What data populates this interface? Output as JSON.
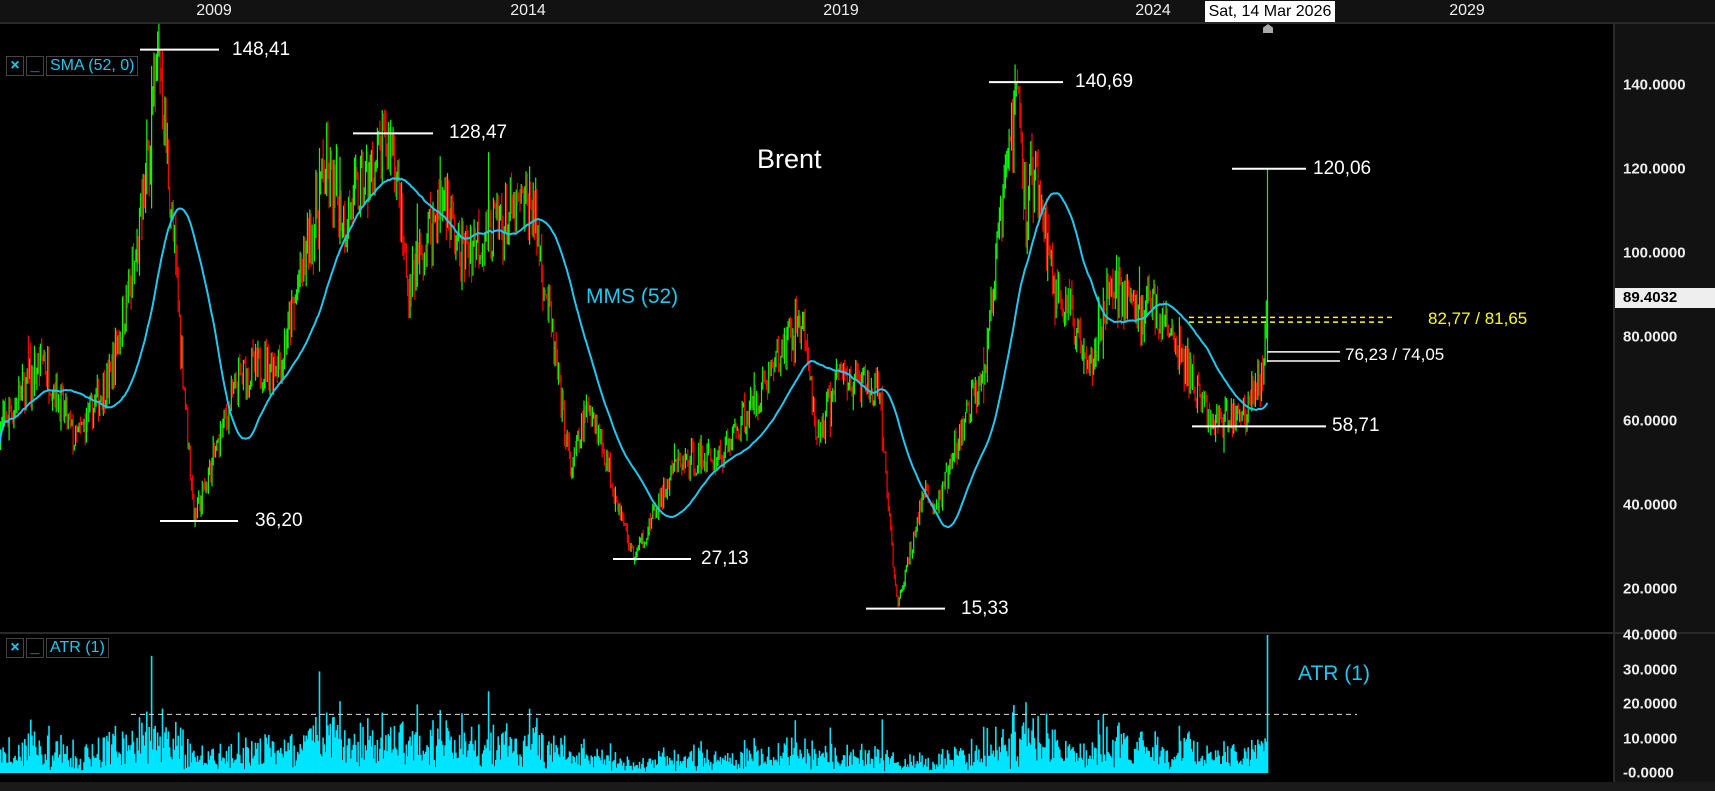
{
  "chart_data": {
    "type": "candlestick",
    "title": "Brent",
    "timeframe": "weekly",
    "x_ticks": [
      "2009",
      "2014",
      "2019",
      "2024",
      "2029"
    ],
    "cursor_date": "Sat, 14 Mar 2026",
    "price_axis": {
      "ticks": [
        "140.0000",
        "120.0000",
        "100.0000",
        "80.0000",
        "60.0000",
        "40.0000",
        "20.0000"
      ],
      "range": [
        12,
        155
      ],
      "last_price": "89.4032"
    },
    "atr_axis": {
      "ticks": [
        "40.0000",
        "30.0000",
        "20.0000",
        "10.0000",
        "-0.0000"
      ],
      "range": [
        0,
        40
      ]
    },
    "price_path_approx": [
      [
        2006.0,
        58
      ],
      [
        2006.7,
        75
      ],
      [
        2007.2,
        55
      ],
      [
        2007.75,
        70
      ],
      [
        2008.2,
        100
      ],
      [
        2008.55,
        148.41
      ],
      [
        2009.1,
        36.2
      ],
      [
        2009.8,
        70
      ],
      [
        2010.5,
        75
      ],
      [
        2011.2,
        120
      ],
      [
        2011.5,
        108
      ],
      [
        2012.25,
        128.47
      ],
      [
        2012.5,
        92
      ],
      [
        2013.1,
        115
      ],
      [
        2013.3,
        100
      ],
      [
        2014.5,
        112
      ],
      [
        2015.1,
        48
      ],
      [
        2015.4,
        65
      ],
      [
        2016.1,
        27.13
      ],
      [
        2016.8,
        50
      ],
      [
        2017.5,
        52
      ],
      [
        2018.8,
        85
      ],
      [
        2019.0,
        55
      ],
      [
        2019.4,
        72
      ],
      [
        2020.0,
        66
      ],
      [
        2020.3,
        15.33
      ],
      [
        2020.7,
        42
      ],
      [
        2020.95,
        40
      ],
      [
        2021.7,
        75
      ],
      [
        2022.2,
        140.69
      ],
      [
        2022.35,
        108
      ],
      [
        2022.45,
        122
      ],
      [
        2022.8,
        92
      ],
      [
        2023.4,
        75
      ],
      [
        2023.7,
        93
      ],
      [
        2024.2,
        85
      ],
      [
        2024.3,
        90
      ],
      [
        2024.8,
        76
      ],
      [
        2025.3,
        60
      ],
      [
        2025.8,
        62
      ],
      [
        2026.1,
        71
      ],
      [
        2026.2,
        89.4032
      ]
    ],
    "last_candle": {
      "high": 120.06,
      "close": 89.4032
    },
    "indicators": [
      {
        "name": "SMA (52, 0)",
        "label": "MMS (52)",
        "period": 52,
        "color": "#1ec8f0"
      },
      {
        "name": "ATR (1)",
        "label": "ATR (1)",
        "period": 1,
        "color": "#00e5ff",
        "reference_level": 17
      }
    ],
    "annotations": [
      {
        "text": "148,41",
        "value": 148.41,
        "kind": "high"
      },
      {
        "text": "36,20",
        "value": 36.2,
        "kind": "low"
      },
      {
        "text": "128,47",
        "value": 128.47,
        "kind": "high"
      },
      {
        "text": "27,13",
        "value": 27.13,
        "kind": "low"
      },
      {
        "text": "15,33",
        "value": 15.33,
        "kind": "low"
      },
      {
        "text": "140,69",
        "value": 140.69,
        "kind": "high"
      },
      {
        "text": "120,06",
        "value": 120.06,
        "kind": "high"
      },
      {
        "text": "58,71",
        "value": 58.71,
        "kind": "low"
      },
      {
        "text": "76,23 / 74,05",
        "values": [
          76.23,
          74.05
        ],
        "kind": "level-pair",
        "color": "#ffffff"
      },
      {
        "text": "82,77 / 81,65",
        "values": [
          82.77,
          81.65
        ],
        "kind": "dashed-level-pair",
        "color": "#ffff00"
      }
    ],
    "colors": {
      "up": "#00ff00",
      "down": "#ff0000",
      "background": "#000000"
    },
    "grid": false
  },
  "legend": {
    "close": "×",
    "minimize": "_",
    "sma": "SMA (52, 0)",
    "atr": "ATR (1)"
  }
}
